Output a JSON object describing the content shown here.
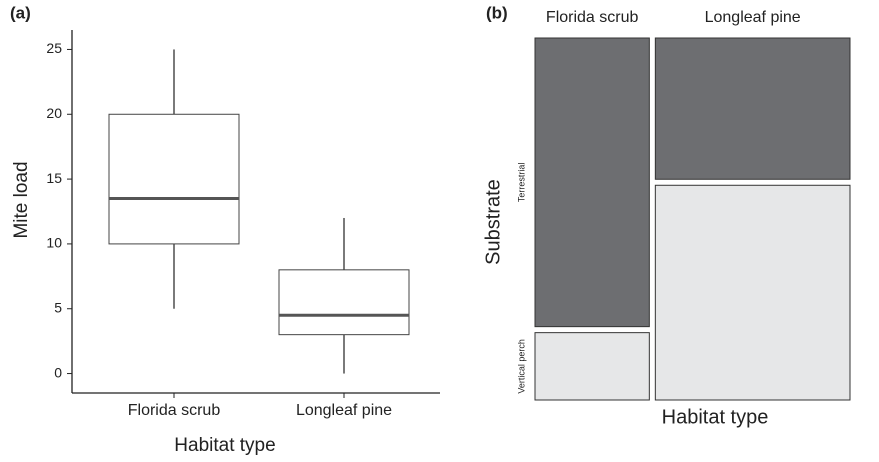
{
  "chart_data": [
    {
      "type": "box",
      "panel": "(a)",
      "ylabel": "Mite load",
      "xlabel": "Habitat type",
      "categories": [
        "Florida scrub",
        "Longleaf pine"
      ],
      "boxes": [
        {
          "whislo": 5,
          "q1": 10,
          "med": 13.5,
          "q3": 20,
          "whishi": 25
        },
        {
          "whislo": 0,
          "q1": 3,
          "med": 4.5,
          "q3": 8,
          "whishi": 12
        }
      ],
      "ylim": [
        -1.5,
        26.5
      ],
      "yticks": [
        0,
        5,
        10,
        15,
        20,
        25
      ]
    },
    {
      "type": "mosaic",
      "panel": "(b)",
      "ylabel": "Substrate",
      "xlabel": "Habitat type",
      "categories": [
        "Florida scrub",
        "Longleaf pine"
      ],
      "series": [
        {
          "name": "Terrestrial",
          "color": "#6d6e71",
          "values": [
            30,
            25
          ]
        },
        {
          "name": "Vertical perch",
          "color": "#e6e7e8",
          "values": [
            7,
            38
          ]
        }
      ]
    }
  ]
}
